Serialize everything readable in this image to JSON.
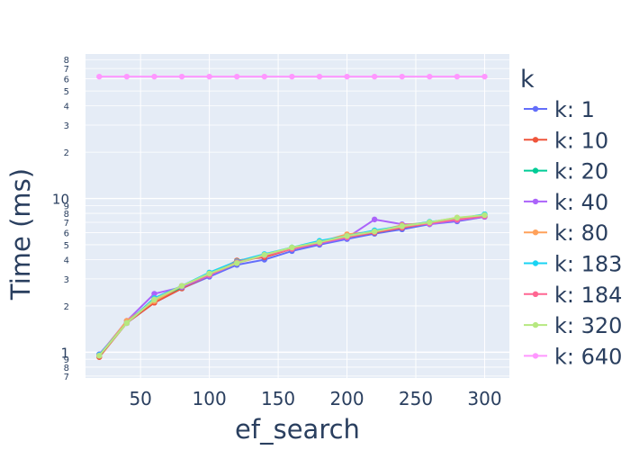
{
  "chart_data": {
    "type": "line",
    "xlabel": "ef_search",
    "ylabel": "Time (ms)",
    "yscale": "log",
    "xlim": [
      10,
      318
    ],
    "ylim": [
      0.68,
      8.7
    ],
    "x_ticks": [
      50,
      100,
      150,
      200,
      250,
      300
    ],
    "y_major_ticks": [
      1,
      10
    ],
    "y_minor_ticks": [
      7,
      8,
      9,
      2,
      3,
      4,
      5,
      6,
      7,
      8,
      9,
      2,
      3,
      4,
      5,
      6,
      7,
      8
    ],
    "grid": true,
    "legend_title": "k",
    "legend_position": "right",
    "x": [
      20,
      40,
      60,
      80,
      100,
      120,
      140,
      160,
      180,
      200,
      220,
      240,
      260,
      280,
      300
    ],
    "series": [
      {
        "name": "k: 1",
        "color": "#636efa",
        "values": [
          0.97,
          1.55,
          2.1,
          2.6,
          3.1,
          3.7,
          4.0,
          4.55,
          5.0,
          5.45,
          5.9,
          6.3,
          6.8,
          7.1,
          7.6
        ]
      },
      {
        "name": "k: 10",
        "color": "#EF553B",
        "values": [
          0.93,
          1.55,
          2.1,
          2.6,
          3.15,
          3.95,
          4.15,
          4.7,
          5.1,
          5.6,
          6.0,
          6.45,
          6.9,
          7.2,
          7.6
        ]
      },
      {
        "name": "k: 20",
        "color": "#00cc96",
        "values": [
          0.95,
          1.55,
          2.2,
          2.65,
          3.2,
          3.85,
          4.3,
          4.8,
          5.2,
          5.6,
          6.1,
          6.6,
          7.0,
          7.4,
          7.8
        ]
      },
      {
        "name": "k: 40",
        "color": "#ab63fa",
        "values": [
          0.96,
          1.6,
          2.4,
          2.65,
          3.15,
          3.8,
          4.25,
          4.7,
          5.1,
          5.55,
          7.3,
          6.8,
          6.8,
          7.2,
          7.6
        ]
      },
      {
        "name": "k: 80",
        "color": "#FFA15A",
        "values": [
          0.95,
          1.6,
          2.15,
          2.7,
          3.2,
          3.8,
          4.25,
          4.75,
          5.2,
          5.85,
          6.1,
          6.7,
          7.0,
          7.5,
          7.7
        ]
      },
      {
        "name": "k: 183",
        "color": "#19d3f3",
        "values": [
          0.96,
          1.55,
          2.25,
          2.7,
          3.3,
          3.9,
          4.35,
          4.8,
          5.3,
          5.7,
          6.2,
          6.6,
          7.05,
          7.35,
          7.9
        ]
      },
      {
        "name": "k: 184",
        "color": "#FF6692",
        "values": [
          0.95,
          1.55,
          2.2,
          2.7,
          3.2,
          3.85,
          4.25,
          4.7,
          5.15,
          5.6,
          6.05,
          6.5,
          6.9,
          7.3,
          7.7
        ]
      },
      {
        "name": "k: 320",
        "color": "#B6E880",
        "values": [
          0.95,
          1.55,
          2.2,
          2.7,
          3.25,
          3.8,
          4.3,
          4.8,
          5.2,
          5.7,
          6.1,
          6.6,
          7.0,
          7.5,
          7.8
        ]
      },
      {
        "name": "k: 640",
        "color": "#FF97FF",
        "values": [
          62,
          62,
          62,
          62,
          62,
          62,
          62,
          62,
          62,
          62,
          62,
          62,
          62,
          62,
          62
        ]
      }
    ]
  }
}
